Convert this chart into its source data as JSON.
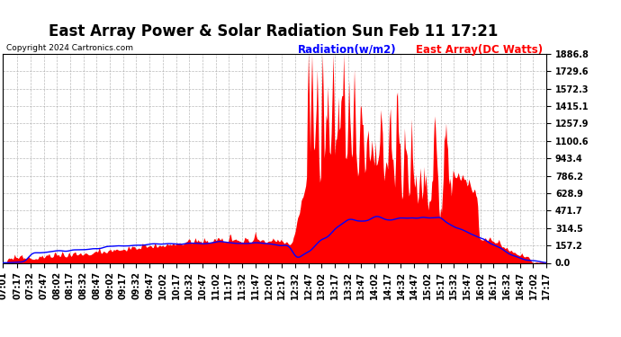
{
  "title": "East Array Power & Solar Radiation Sun Feb 11 17:21",
  "copyright": "Copyright 2024 Cartronics.com",
  "legend_radiation": "Radiation(w/m2)",
  "legend_array": "East Array(DC Watts)",
  "radiation_color": "blue",
  "array_color": "red",
  "ylim": [
    0.0,
    1886.8
  ],
  "yticks": [
    0.0,
    157.2,
    314.5,
    471.7,
    628.9,
    786.2,
    943.4,
    1100.6,
    1257.9,
    1415.1,
    1572.3,
    1729.6,
    1886.8
  ],
  "background_color": "#ffffff",
  "grid_color": "#aaaaaa",
  "title_fontsize": 12,
  "tick_fontsize": 7.0,
  "copyright_fontsize": 6.5,
  "legend_fontsize": 8.5
}
